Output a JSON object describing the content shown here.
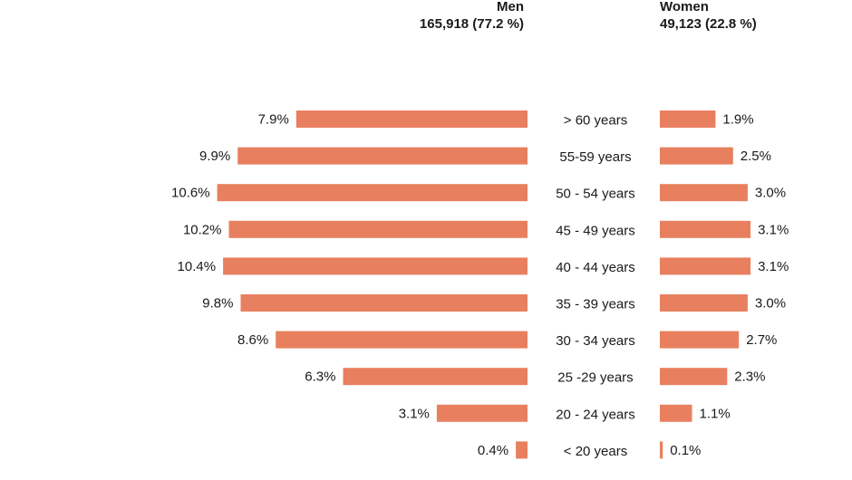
{
  "header": {
    "men_label": "Men",
    "men_summary": "165,918 (77.2 %)",
    "women_label": "Women",
    "women_summary": "49,123 (22.8 %)"
  },
  "colors": {
    "bar": "#e8805f",
    "text": "#1a1a1a"
  },
  "chart_data": {
    "type": "bar",
    "orientation": "horizontal-diverging",
    "categories": [
      "> 60 years",
      "55-59 years",
      "50 - 54 years",
      "45 - 49 years",
      "40 - 44 years",
      "35 - 39 years",
      "30 - 34 years",
      "25 -29 years",
      "20 - 24 years",
      "< 20 years"
    ],
    "series": [
      {
        "name": "Men",
        "values": [
          7.9,
          9.9,
          10.6,
          10.2,
          10.4,
          9.8,
          8.6,
          6.3,
          3.1,
          0.4
        ],
        "labels": [
          "7.9%",
          "9.9%",
          "10.6%",
          "10.2%",
          "10.4%",
          "9.8%",
          "8.6%",
          "6.3%",
          "3.1%",
          "0.4%"
        ]
      },
      {
        "name": "Women",
        "values": [
          1.9,
          2.5,
          3.0,
          3.1,
          3.1,
          3.0,
          2.7,
          2.3,
          1.1,
          0.1
        ],
        "labels": [
          "1.9%",
          "2.5%",
          "3.0%",
          "3.1%",
          "3.1%",
          "3.0%",
          "2.7%",
          "2.3%",
          "1.1%",
          "0.1%"
        ]
      }
    ],
    "unit": "%",
    "title": "",
    "xlabel": "",
    "ylabel": ""
  }
}
